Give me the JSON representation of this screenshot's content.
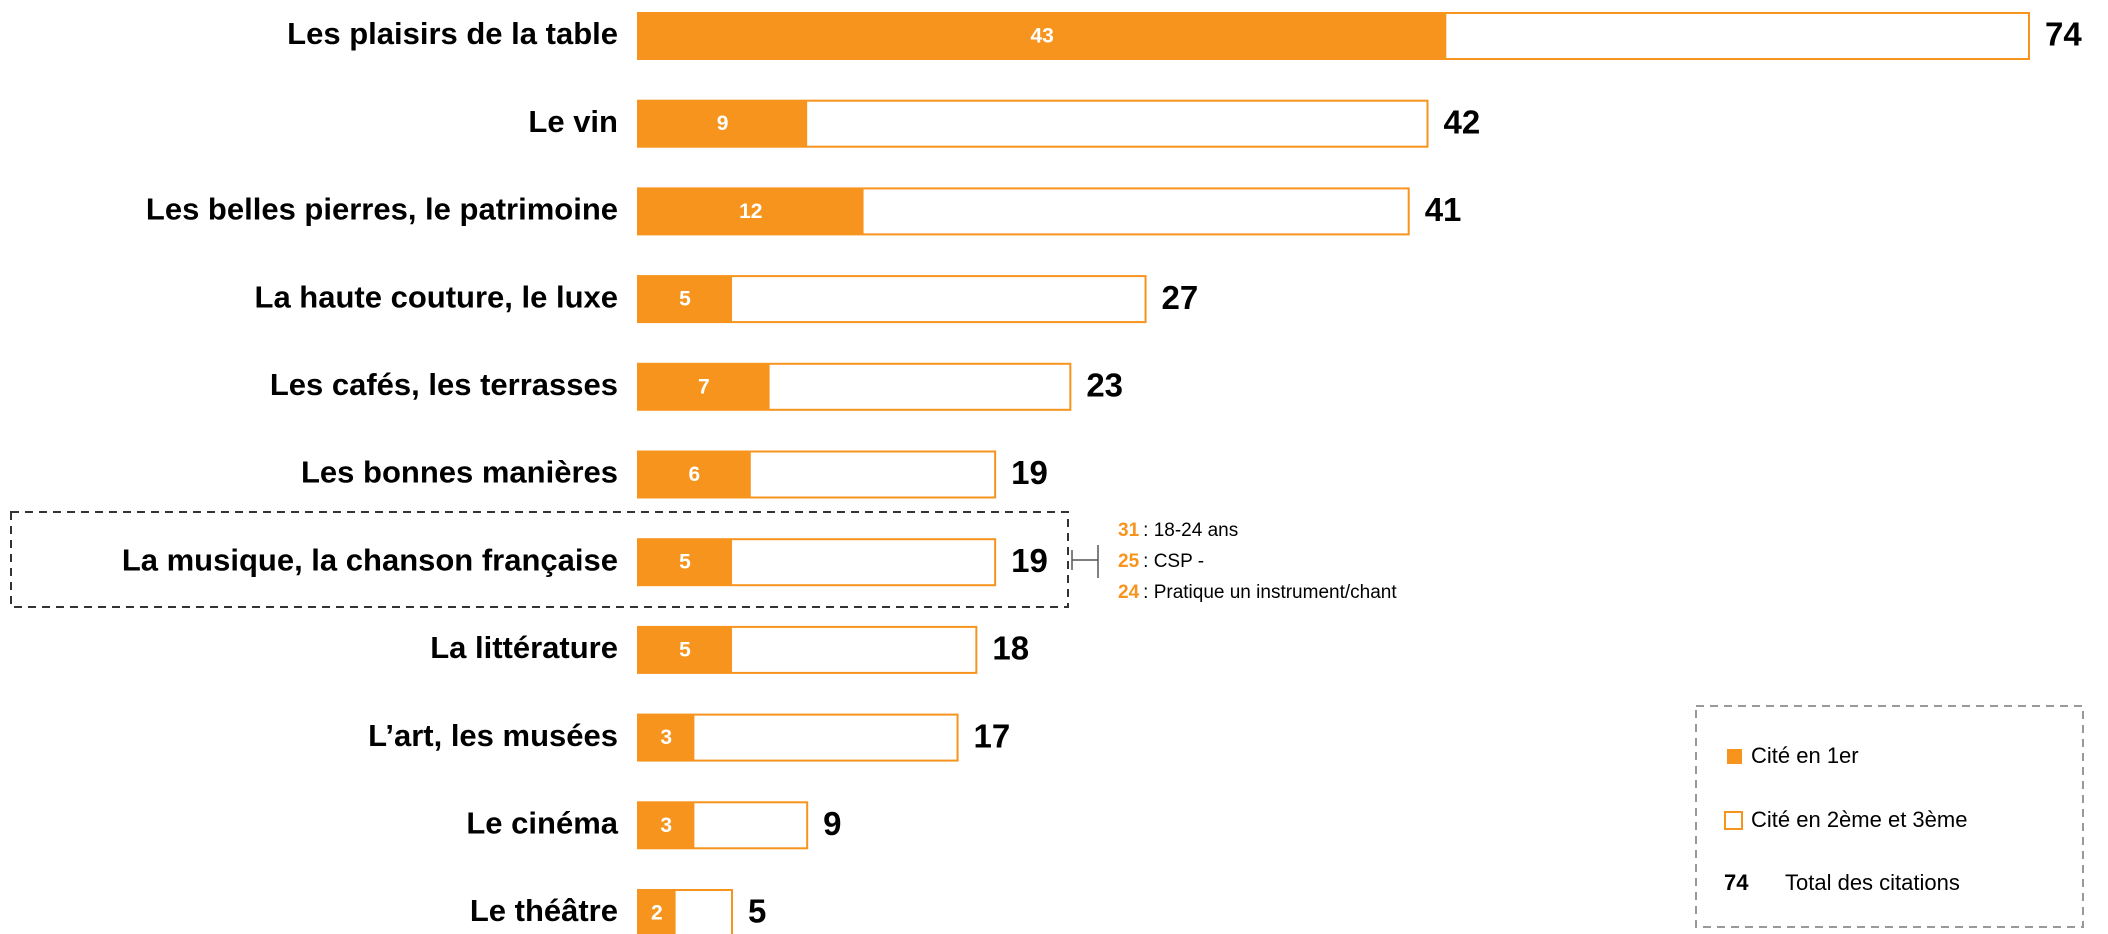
{
  "chart_data": {
    "type": "bar",
    "categories": [
      "Les plaisirs de la table",
      "Le vin",
      "Les belles pierres, le patrimoine",
      "La haute couture, le luxe",
      "Les cafés, les terrasses",
      "Les bonnes manières",
      "La musique, la chanson française",
      "La littérature",
      "L’art, les musées",
      "Le cinéma",
      "Le théâtre"
    ],
    "series": [
      {
        "name": "Cité en 1er",
        "color": "#f7941d",
        "values": [
          43,
          9,
          12,
          5,
          7,
          6,
          5,
          5,
          3,
          3,
          2
        ]
      },
      {
        "name": "Cité en 2ème et 3ème",
        "color": "#ffffff"
      }
    ],
    "totals": {
      "name": "Total des citations",
      "color": "#f7941d",
      "values": [
        74,
        42,
        41,
        27,
        23,
        19,
        19,
        18,
        17,
        9,
        5
      ]
    },
    "legend_total_sample": 74,
    "annotation": {
      "category_index": 6,
      "items": [
        {
          "value": 31,
          "label": ": 18-24 ans"
        },
        {
          "value": 25,
          "label": ": CSP -"
        },
        {
          "value": 24,
          "label": ": Pratique un instrument/chant"
        }
      ]
    }
  }
}
